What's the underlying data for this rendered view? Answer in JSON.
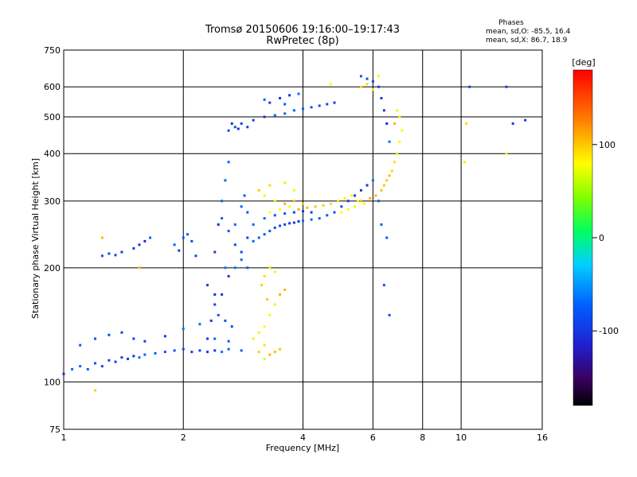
{
  "chart_data": {
    "type": "scatter",
    "title": "Tromsø 20150606 19:16:00–19:17:43",
    "subtitle": "RwPretec (8p)",
    "xlabel": "Frequency [MHz]",
    "ylabel": "Stationary phase Virtual Height [km]",
    "x_scale": "log",
    "y_scale": "log",
    "xlim": [
      1,
      16
    ],
    "ylim": [
      75,
      750
    ],
    "x_ticks": [
      1,
      2,
      4,
      6,
      8,
      10,
      16
    ],
    "y_ticks": [
      75,
      100,
      200,
      300,
      400,
      500,
      600,
      750
    ],
    "grid": true,
    "stats": {
      "title": "Phases",
      "line_o": "mean, sd,O: -85.5, 16.4",
      "line_x": "mean, sd,X: 86.7, 18.9"
    },
    "colorbar": {
      "label": "[deg]",
      "range": [
        -180,
        180
      ],
      "ticks": [
        100,
        0,
        -100
      ]
    },
    "series": [
      {
        "name": "O",
        "phase_deg": -85,
        "points": [
          [
            1.0,
            105
          ],
          [
            1.05,
            108
          ],
          [
            1.1,
            110
          ],
          [
            1.15,
            108
          ],
          [
            1.2,
            112
          ],
          [
            1.25,
            110
          ],
          [
            1.3,
            114
          ],
          [
            1.35,
            113
          ],
          [
            1.4,
            116
          ],
          [
            1.45,
            115
          ],
          [
            1.5,
            117
          ],
          [
            1.55,
            116
          ],
          [
            1.6,
            118
          ],
          [
            1.7,
            119
          ],
          [
            1.8,
            120
          ],
          [
            1.9,
            121
          ],
          [
            2.0,
            122
          ],
          [
            2.1,
            120
          ],
          [
            2.2,
            121
          ],
          [
            2.3,
            120
          ],
          [
            2.4,
            121
          ],
          [
            2.5,
            120
          ],
          [
            2.6,
            122
          ],
          [
            2.8,
            121
          ],
          [
            1.1,
            125
          ],
          [
            1.2,
            130
          ],
          [
            1.3,
            133
          ],
          [
            1.4,
            135
          ],
          [
            1.5,
            130
          ],
          [
            1.6,
            128
          ],
          [
            1.8,
            132
          ],
          [
            2.0,
            138
          ],
          [
            2.2,
            142
          ],
          [
            2.4,
            130
          ],
          [
            2.6,
            128
          ],
          [
            1.25,
            215
          ],
          [
            1.3,
            218
          ],
          [
            1.35,
            216
          ],
          [
            1.4,
            220
          ],
          [
            1.5,
            225
          ],
          [
            1.55,
            230
          ],
          [
            1.6,
            235
          ],
          [
            1.65,
            240
          ],
          [
            1.9,
            230
          ],
          [
            2.0,
            240
          ],
          [
            2.05,
            245
          ],
          [
            2.1,
            235
          ],
          [
            2.15,
            215
          ],
          [
            1.95,
            222
          ],
          [
            2.3,
            180
          ],
          [
            2.4,
            220
          ],
          [
            2.45,
            260
          ],
          [
            2.5,
            300
          ],
          [
            2.55,
            340
          ],
          [
            2.6,
            380
          ],
          [
            2.5,
            270
          ],
          [
            2.6,
            250
          ],
          [
            2.7,
            230
          ],
          [
            2.8,
            220
          ],
          [
            2.4,
            160
          ],
          [
            2.5,
            170
          ],
          [
            2.6,
            190
          ],
          [
            2.7,
            200
          ],
          [
            2.8,
            210
          ],
          [
            2.9,
            200
          ],
          [
            2.45,
            150
          ],
          [
            2.55,
            145
          ],
          [
            2.65,
            140
          ],
          [
            2.9,
            240
          ],
          [
            2.3,
            130
          ],
          [
            2.35,
            145
          ],
          [
            2.4,
            170
          ],
          [
            2.55,
            200
          ],
          [
            2.7,
            260
          ],
          [
            2.8,
            290
          ],
          [
            2.85,
            310
          ],
          [
            2.9,
            280
          ],
          [
            2.6,
            460
          ],
          [
            2.7,
            470
          ],
          [
            2.8,
            480
          ],
          [
            2.9,
            470
          ],
          [
            2.65,
            480
          ],
          [
            2.75,
            465
          ],
          [
            3.0,
            235
          ],
          [
            3.1,
            240
          ],
          [
            3.2,
            245
          ],
          [
            3.3,
            250
          ],
          [
            3.4,
            255
          ],
          [
            3.5,
            258
          ],
          [
            3.6,
            260
          ],
          [
            3.7,
            262
          ],
          [
            3.8,
            263
          ],
          [
            3.9,
            265
          ],
          [
            4.0,
            266
          ],
          [
            4.2,
            268
          ],
          [
            4.4,
            270
          ],
          [
            4.6,
            275
          ],
          [
            4.8,
            280
          ],
          [
            5.0,
            290
          ],
          [
            5.2,
            300
          ],
          [
            5.4,
            310
          ],
          [
            5.6,
            320
          ],
          [
            5.8,
            330
          ],
          [
            6.0,
            340
          ],
          [
            3.0,
            260
          ],
          [
            3.2,
            270
          ],
          [
            3.4,
            275
          ],
          [
            3.6,
            278
          ],
          [
            3.8,
            280
          ],
          [
            4.0,
            282
          ],
          [
            4.2,
            280
          ],
          [
            3.0,
            490
          ],
          [
            3.2,
            500
          ],
          [
            3.4,
            505
          ],
          [
            3.6,
            510
          ],
          [
            3.8,
            520
          ],
          [
            4.0,
            525
          ],
          [
            4.2,
            530
          ],
          [
            4.4,
            535
          ],
          [
            4.6,
            540
          ],
          [
            4.8,
            545
          ],
          [
            3.3,
            545
          ],
          [
            3.5,
            560
          ],
          [
            3.7,
            570
          ],
          [
            3.9,
            575
          ],
          [
            3.2,
            555
          ],
          [
            3.6,
            540
          ],
          [
            5.6,
            640
          ],
          [
            5.8,
            630
          ],
          [
            6.0,
            620
          ],
          [
            6.2,
            600
          ],
          [
            6.3,
            560
          ],
          [
            6.4,
            520
          ],
          [
            6.5,
            480
          ],
          [
            6.6,
            430
          ],
          [
            6.2,
            300
          ],
          [
            6.3,
            260
          ],
          [
            6.5,
            240
          ],
          [
            6.4,
            180
          ],
          [
            6.6,
            150
          ],
          [
            10.5,
            600
          ],
          [
            13,
            600
          ],
          [
            13.5,
            480
          ],
          [
            14.5,
            490
          ]
        ]
      },
      {
        "name": "X",
        "phase_deg": 90,
        "points": [
          [
            3.2,
            115
          ],
          [
            3.3,
            118
          ],
          [
            3.4,
            120
          ],
          [
            3.5,
            122
          ],
          [
            3.1,
            120
          ],
          [
            3.2,
            125
          ],
          [
            3.0,
            130
          ],
          [
            3.1,
            135
          ],
          [
            3.2,
            140
          ],
          [
            3.3,
            150
          ],
          [
            3.4,
            160
          ],
          [
            3.5,
            170
          ],
          [
            3.6,
            175
          ],
          [
            3.25,
            165
          ],
          [
            3.15,
            180
          ],
          [
            3.2,
            190
          ],
          [
            3.3,
            200
          ],
          [
            3.4,
            195
          ],
          [
            3.3,
            280
          ],
          [
            3.5,
            285
          ],
          [
            3.7,
            290
          ],
          [
            3.9,
            285
          ],
          [
            4.1,
            288
          ],
          [
            4.3,
            290
          ],
          [
            4.5,
            292
          ],
          [
            4.7,
            295
          ],
          [
            4.9,
            300
          ],
          [
            5.1,
            305
          ],
          [
            5.3,
            310
          ],
          [
            5.5,
            300
          ],
          [
            5.7,
            295
          ],
          [
            5.9,
            305
          ],
          [
            6.1,
            310
          ],
          [
            6.3,
            320
          ],
          [
            6.5,
            340
          ],
          [
            6.7,
            360
          ],
          [
            6.8,
            380
          ],
          [
            6.9,
            400
          ],
          [
            7.0,
            430
          ],
          [
            7.1,
            460
          ],
          [
            7.0,
            500
          ],
          [
            6.9,
            520
          ],
          [
            6.8,
            480
          ],
          [
            6.6,
            350
          ],
          [
            6.4,
            330
          ],
          [
            5.6,
            600
          ],
          [
            5.8,
            610
          ],
          [
            6.0,
            590
          ],
          [
            6.2,
            640
          ],
          [
            4.7,
            610
          ],
          [
            3.4,
            300
          ],
          [
            3.2,
            310
          ],
          [
            3.6,
            295
          ],
          [
            3.8,
            300
          ],
          [
            4.0,
            295
          ],
          [
            3.1,
            320
          ],
          [
            3.3,
            330
          ],
          [
            3.6,
            335
          ],
          [
            3.8,
            320
          ],
          [
            5.0,
            280
          ],
          [
            5.2,
            285
          ],
          [
            5.4,
            290
          ],
          [
            5.6,
            300
          ],
          [
            1.25,
            240
          ],
          [
            1.55,
            200
          ],
          [
            1.2,
            95
          ],
          [
            10.3,
            480
          ],
          [
            10.2,
            380
          ],
          [
            13.0,
            400
          ]
        ]
      }
    ]
  }
}
